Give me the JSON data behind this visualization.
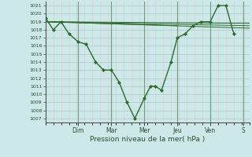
{
  "title": "",
  "xlabel": "Pression niveau de la mer( hPa )",
  "background_color": "#cce8e8",
  "grid_major_color": "#aac8c8",
  "grid_minor_color": "#ddc8c8",
  "line_color": "#2d6b2d",
  "day_line_color": "#7a9a7a",
  "ylim": [
    1006.5,
    1021.5
  ],
  "yticks": [
    1007,
    1008,
    1009,
    1010,
    1011,
    1012,
    1013,
    1014,
    1015,
    1016,
    1017,
    1018,
    1019,
    1020,
    1021
  ],
  "xlim": [
    0,
    13
  ],
  "day_labels": [
    "Dim",
    "Mar",
    "Mer",
    "Jeu",
    "Ven",
    "S"
  ],
  "day_positions": [
    2.1,
    4.2,
    6.3,
    8.4,
    10.5,
    12.6
  ],
  "day_lines": [
    2.1,
    4.2,
    6.3,
    8.4,
    10.5,
    12.6
  ],
  "series_main": {
    "x": [
      0,
      0.5,
      1.0,
      1.5,
      2.1,
      2.6,
      3.2,
      3.7,
      4.2,
      4.7,
      5.2,
      5.7,
      6.3,
      6.7,
      7.0,
      7.4,
      8.0,
      8.4,
      8.9,
      9.4,
      9.9,
      10.5,
      11.0,
      11.5,
      12.0
    ],
    "y": [
      1019.5,
      1018,
      1019,
      1017.5,
      1016.5,
      1016.2,
      1014,
      1013,
      1013,
      1011.5,
      1009,
      1007,
      1009.5,
      1011,
      1011,
      1010.5,
      1014,
      1017,
      1017.5,
      1018.5,
      1019,
      1019,
      1021,
      1021,
      1017.5
    ]
  },
  "series_flat": [
    {
      "x": [
        0,
        13
      ],
      "y": [
        1019,
        1018.8
      ]
    },
    {
      "x": [
        0,
        13
      ],
      "y": [
        1019,
        1018.5
      ]
    },
    {
      "x": [
        0,
        13
      ],
      "y": [
        1019,
        1018.2
      ]
    },
    {
      "x": [
        0,
        8.4
      ],
      "y": [
        1019,
        1018.5
      ]
    }
  ]
}
